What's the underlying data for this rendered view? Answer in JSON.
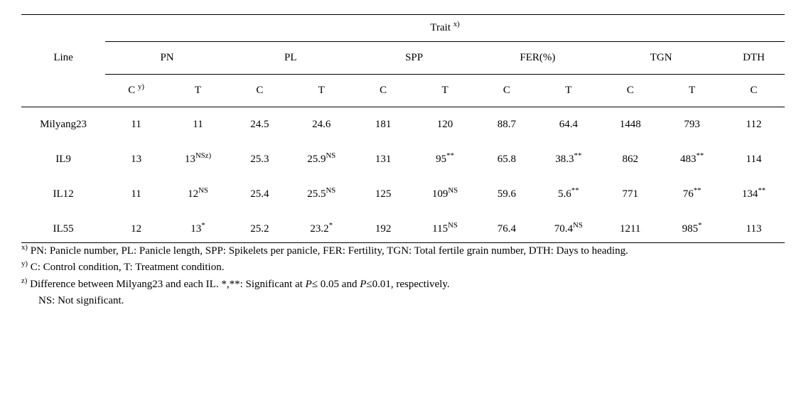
{
  "table": {
    "header": {
      "trait_label": "Trait",
      "trait_sup": "x)",
      "line_label": "Line",
      "groups": [
        "PN",
        "PL",
        "SPP",
        "FER(%)",
        "TGN",
        "DTH"
      ],
      "sub_c_label": "C",
      "sub_c_first_sup": "y)",
      "sub_t_label": "T"
    },
    "rows": [
      {
        "line": "Milyang23",
        "cells": [
          {
            "v": "11",
            "sup": ""
          },
          {
            "v": "11",
            "sup": ""
          },
          {
            "v": "24.5",
            "sup": ""
          },
          {
            "v": "24.6",
            "sup": ""
          },
          {
            "v": "181",
            "sup": ""
          },
          {
            "v": "120",
            "sup": ""
          },
          {
            "v": "88.7",
            "sup": ""
          },
          {
            "v": "64.4",
            "sup": ""
          },
          {
            "v": "1448",
            "sup": ""
          },
          {
            "v": "793",
            "sup": ""
          },
          {
            "v": "112",
            "sup": ""
          }
        ]
      },
      {
        "line": "IL9",
        "cells": [
          {
            "v": "13",
            "sup": ""
          },
          {
            "v": "13",
            "sup": "NSz)"
          },
          {
            "v": "25.3",
            "sup": ""
          },
          {
            "v": "25.9",
            "sup": "NS"
          },
          {
            "v": "131",
            "sup": ""
          },
          {
            "v": "95",
            "sup": "**"
          },
          {
            "v": "65.8",
            "sup": ""
          },
          {
            "v": "38.3",
            "sup": "**"
          },
          {
            "v": "862",
            "sup": ""
          },
          {
            "v": "483",
            "sup": "**"
          },
          {
            "v": "114",
            "sup": ""
          }
        ]
      },
      {
        "line": "IL12",
        "cells": [
          {
            "v": "11",
            "sup": ""
          },
          {
            "v": "12",
            "sup": "NS"
          },
          {
            "v": "25.4",
            "sup": ""
          },
          {
            "v": "25.5",
            "sup": "NS"
          },
          {
            "v": "125",
            "sup": ""
          },
          {
            "v": "109",
            "sup": "NS"
          },
          {
            "v": "59.6",
            "sup": ""
          },
          {
            "v": "5.6",
            "sup": "**"
          },
          {
            "v": "771",
            "sup": ""
          },
          {
            "v": "76",
            "sup": "**"
          },
          {
            "v": "134",
            "sup": "**"
          }
        ]
      },
      {
        "line": "IL55",
        "cells": [
          {
            "v": "12",
            "sup": ""
          },
          {
            "v": "13",
            "sup": "*"
          },
          {
            "v": "25.2",
            "sup": ""
          },
          {
            "v": "23.2",
            "sup": "*"
          },
          {
            "v": "192",
            "sup": ""
          },
          {
            "v": "115",
            "sup": "NS"
          },
          {
            "v": "76.4",
            "sup": ""
          },
          {
            "v": "70.4",
            "sup": "NS"
          },
          {
            "v": "1211",
            "sup": ""
          },
          {
            "v": "985",
            "sup": "*"
          },
          {
            "v": "113",
            "sup": ""
          }
        ]
      }
    ]
  },
  "footnotes": {
    "x_sup": "x)",
    "x_text": " PN: Panicle number, PL: Panicle length, SPP: Spikelets per panicle, FER: Fertility, TGN: Total fertile grain number, DTH: Days to heading.",
    "y_sup": "y)",
    "y_text": " C: Control condition, T: Treatment condition.",
    "z_sup": "z)",
    "z_text_a": " Difference between Milyang23 and each IL. *,**: Significant at ",
    "z_p1": "P",
    "z_text_b": "≤ 0.05 and ",
    "z_p2": "P",
    "z_text_c": "≤0.01, respectively.",
    "ns_text": "NS: Not significant."
  }
}
